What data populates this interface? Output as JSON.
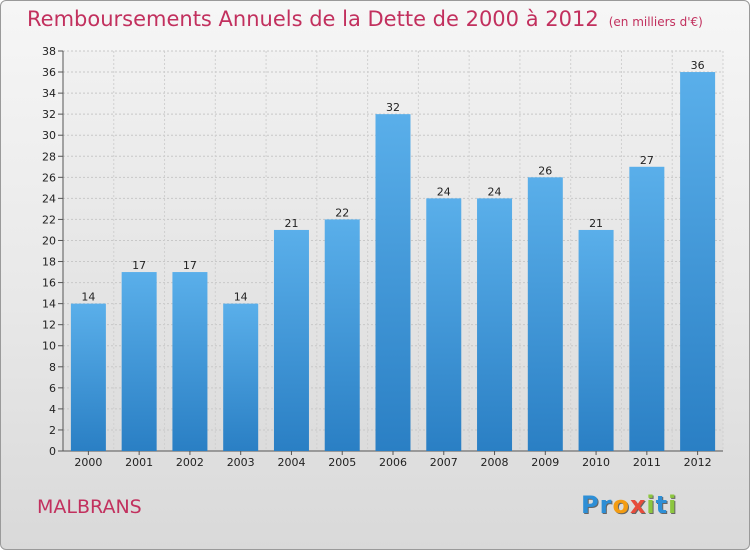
{
  "title": "Remboursements Annuels de la Dette de 2000 à 2012",
  "title_unit": "(en milliers d'€)",
  "commune": "MALBRANS",
  "logo": {
    "letters": [
      "P",
      "r",
      "o",
      "x",
      "i",
      "t",
      "i"
    ],
    "colors": [
      "#2e8fd6",
      "#2e8fd6",
      "#f39c12",
      "#e74c3c",
      "#8cc63f",
      "#2e8fd6",
      "#8cc63f"
    ]
  },
  "chart_data": {
    "type": "bar",
    "categories": [
      "2000",
      "2001",
      "2002",
      "2003",
      "2004",
      "2005",
      "2006",
      "2007",
      "2008",
      "2009",
      "2010",
      "2011",
      "2012"
    ],
    "values": [
      14,
      17,
      17,
      14,
      21,
      22,
      32,
      24,
      24,
      26,
      21,
      27,
      36
    ],
    "ylim": [
      0,
      38
    ],
    "yticks": [
      0,
      2,
      4,
      6,
      8,
      10,
      12,
      14,
      16,
      18,
      20,
      22,
      24,
      26,
      28,
      30,
      32,
      34,
      36,
      38
    ],
    "grid": true,
    "bar_color": "#4ea3e2"
  }
}
